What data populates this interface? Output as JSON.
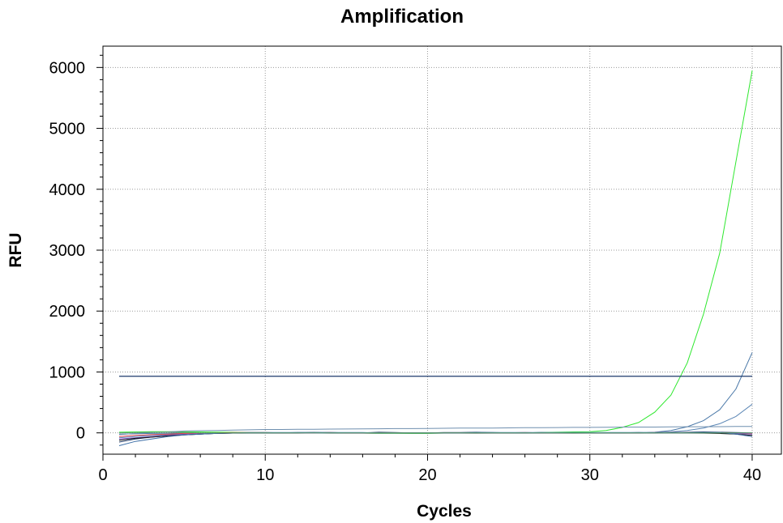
{
  "chart_data": {
    "type": "line",
    "title": "Amplification",
    "xlabel": "Cycles",
    "ylabel": "RFU",
    "xlim": [
      0,
      41.8
    ],
    "ylim": [
      -350,
      6350
    ],
    "xticks": [
      0,
      10,
      20,
      30,
      40
    ],
    "yticks": [
      0,
      1000,
      2000,
      3000,
      4000,
      5000,
      6000
    ],
    "xticks_minor_step": 2,
    "yticks_minor_step": 200,
    "grid": true,
    "threshold": {
      "value": 930,
      "x_range": [
        1,
        40
      ],
      "color": "#1c3a6b"
    },
    "x": [
      1,
      2,
      3,
      4,
      5,
      6,
      7,
      8,
      9,
      10,
      11,
      12,
      13,
      14,
      15,
      16,
      17,
      18,
      19,
      20,
      21,
      22,
      23,
      24,
      25,
      26,
      27,
      28,
      29,
      30,
      31,
      32,
      33,
      34,
      35,
      36,
      37,
      38,
      39,
      40
    ],
    "series": [
      {
        "color": "#2ee82e",
        "values": [
          10,
          15,
          18,
          20,
          18,
          15,
          12,
          10,
          5,
          3,
          0,
          -2,
          -5,
          -5,
          -5,
          -5,
          -8,
          -8,
          -10,
          -10,
          -5,
          -5,
          -3,
          0,
          0,
          0,
          5,
          10,
          15,
          20,
          40,
          90,
          170,
          340,
          620,
          1150,
          1950,
          2950,
          4450,
          5950
        ]
      },
      {
        "color": "#4a78a8",
        "values": [
          -20,
          -15,
          -10,
          -8,
          -5,
          -5,
          -3,
          0,
          0,
          0,
          0,
          0,
          0,
          0,
          0,
          0,
          0,
          0,
          0,
          0,
          0,
          0,
          0,
          0,
          0,
          0,
          0,
          0,
          0,
          0,
          0,
          0,
          0,
          10,
          40,
          100,
          200,
          380,
          720,
          1320
        ]
      },
      {
        "color": "#5b86b5",
        "values": [
          -80,
          -60,
          -40,
          -30,
          -20,
          -15,
          -10,
          -5,
          0,
          0,
          0,
          0,
          0,
          0,
          0,
          0,
          0,
          0,
          0,
          0,
          0,
          0,
          0,
          0,
          0,
          0,
          0,
          0,
          0,
          0,
          0,
          0,
          0,
          5,
          15,
          40,
          80,
          150,
          270,
          470
        ]
      },
      {
        "color": "#6f8faf",
        "values": [
          -30,
          -10,
          5,
          15,
          30,
          35,
          40,
          45,
          50,
          55,
          55,
          58,
          60,
          62,
          63,
          65,
          68,
          70,
          70,
          72,
          75,
          78,
          80,
          80,
          82,
          85,
          85,
          88,
          90,
          90,
          92,
          95,
          95,
          95,
          98,
          100,
          100,
          102,
          104,
          105
        ]
      },
      {
        "color": "#223a66",
        "values": [
          -150,
          -100,
          -70,
          -50,
          -30,
          -20,
          -10,
          -5,
          0,
          0,
          0,
          5,
          5,
          5,
          0,
          0,
          10,
          5,
          0,
          0,
          5,
          5,
          10,
          5,
          0,
          0,
          5,
          0,
          0,
          -5,
          0,
          0,
          5,
          0,
          5,
          10,
          15,
          10,
          5,
          0
        ]
      },
      {
        "color": "#e0404a",
        "values": [
          -60,
          -40,
          -30,
          -20,
          -10,
          -5,
          0,
          5,
          5,
          5,
          0,
          0,
          0,
          5,
          0,
          0,
          0,
          0,
          -5,
          -5,
          0,
          0,
          0,
          0,
          0,
          5,
          0,
          0,
          0,
          0,
          0,
          0,
          0,
          5,
          5,
          5,
          0,
          0,
          -5,
          -10
        ]
      },
      {
        "color": "#8a5bd0",
        "values": [
          -100,
          -80,
          -60,
          -40,
          -25,
          -15,
          -10,
          -5,
          0,
          0,
          0,
          0,
          0,
          0,
          0,
          0,
          0,
          0,
          0,
          0,
          0,
          0,
          0,
          0,
          0,
          0,
          0,
          0,
          0,
          0,
          0,
          0,
          0,
          0,
          0,
          0,
          0,
          0,
          -10,
          -20
        ]
      },
      {
        "color": "#101010",
        "values": [
          -120,
          -90,
          -70,
          -50,
          -35,
          -20,
          -10,
          -5,
          0,
          0,
          0,
          0,
          5,
          0,
          0,
          0,
          -5,
          0,
          0,
          0,
          0,
          0,
          -5,
          0,
          0,
          0,
          0,
          0,
          -5,
          0,
          0,
          0,
          0,
          0,
          0,
          0,
          -5,
          -10,
          -20,
          -40
        ]
      },
      {
        "color": "#3d6fa8",
        "values": [
          -210,
          -140,
          -100,
          -60,
          -35,
          -20,
          -10,
          0,
          5,
          5,
          5,
          5,
          5,
          5,
          5,
          5,
          0,
          0,
          0,
          0,
          0,
          0,
          5,
          5,
          5,
          5,
          5,
          5,
          5,
          5,
          5,
          5,
          5,
          5,
          5,
          5,
          5,
          5,
          -20,
          -60
        ]
      },
      {
        "color": "#5aa06a",
        "values": [
          0,
          5,
          10,
          10,
          5,
          0,
          0,
          0,
          0,
          0,
          0,
          0,
          0,
          0,
          0,
          0,
          0,
          0,
          0,
          0,
          0,
          0,
          0,
          0,
          0,
          0,
          0,
          0,
          0,
          0,
          0,
          0,
          0,
          0,
          0,
          0,
          0,
          0,
          0,
          0
        ]
      }
    ]
  }
}
